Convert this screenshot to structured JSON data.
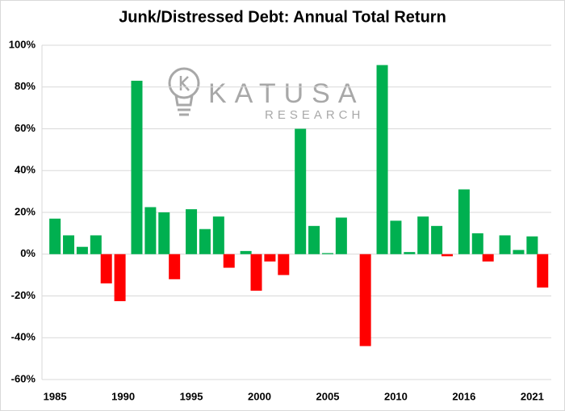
{
  "chart_data": {
    "type": "bar",
    "title": "Junk/Distressed Debt: Annual Total Return",
    "watermark": {
      "brand": "KATUSA",
      "sub": "RESEARCH"
    },
    "categories": [
      "1985",
      null,
      null,
      null,
      null,
      "1990",
      null,
      null,
      null,
      null,
      "1995",
      null,
      null,
      null,
      null,
      "2000",
      null,
      null,
      null,
      null,
      "2005",
      null,
      null,
      null,
      null,
      "2010",
      null,
      null,
      null,
      null,
      "2016",
      null,
      null,
      null,
      null,
      "2021",
      null
    ],
    "values": [
      17,
      9,
      3.5,
      9,
      -14,
      -22.5,
      83,
      22.5,
      20,
      -12,
      21.5,
      12,
      18,
      -6.5,
      1.5,
      -17.5,
      -3.5,
      -10,
      60,
      13.5,
      0.5,
      17.5,
      null,
      -44,
      90.5,
      16,
      1,
      18,
      13.5,
      -1,
      31,
      10,
      -3.5,
      9,
      2,
      8.5,
      -16
    ],
    "colors": {
      "positive": "#00b050",
      "negative": "#ff0000"
    },
    "ylim": [
      -60,
      100
    ],
    "yticks": [
      {
        "value": -60,
        "label": "-60%"
      },
      {
        "value": -40,
        "label": "-40%"
      },
      {
        "value": -20,
        "label": "-20%"
      },
      {
        "value": 0,
        "label": "0%"
      },
      {
        "value": 20,
        "label": "20%"
      },
      {
        "value": 40,
        "label": "40%"
      },
      {
        "value": 60,
        "label": "60%"
      },
      {
        "value": 80,
        "label": "80%"
      },
      {
        "value": 100,
        "label": "100%"
      }
    ],
    "grid": true
  }
}
